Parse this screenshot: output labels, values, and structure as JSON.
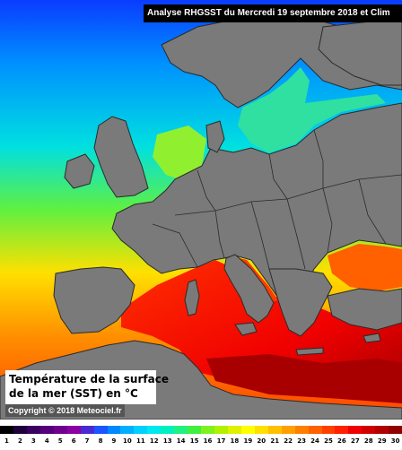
{
  "header": {
    "title": "Analyse RHGSST  du Mercredi 19 septembre 2018 et Clim"
  },
  "legend": {
    "line1": "Température de la surface",
    "line2": "de la mer (SST) en °C"
  },
  "copyright": "Copyright © 2018 Meteociel.fr",
  "scale": {
    "labels": [
      "1",
      "2",
      "3",
      "4",
      "5",
      "6",
      "7",
      "8",
      "9",
      "10",
      "11",
      "12",
      "13",
      "14",
      "15",
      "16",
      "17",
      "18",
      "19",
      "20",
      "21",
      "22",
      "23",
      "24",
      "25",
      "26",
      "27",
      "28",
      "29",
      "30"
    ],
    "colors": [
      "#000000",
      "#20003a",
      "#3a0060",
      "#55007a",
      "#6e0090",
      "#8a00a5",
      "#4a2ad0",
      "#1a55ff",
      "#0088ff",
      "#00b0ff",
      "#00d0ff",
      "#00e8f0",
      "#00f0c0",
      "#20f080",
      "#40f040",
      "#80f020",
      "#b0f000",
      "#e0f000",
      "#ffff00",
      "#ffe000",
      "#ffc000",
      "#ffa000",
      "#ff8000",
      "#ff6000",
      "#ff4000",
      "#ff2000",
      "#f00000",
      "#d00000",
      "#b00000",
      "#900000"
    ]
  },
  "colors": {
    "land": "#7a7a7a",
    "sea_north": "#1a5aff",
    "sea_atlantic": "#00c8f0",
    "sea_mediterranean": "#ff2000",
    "sea_levant": "#b00000",
    "sea_black": "#ff6000",
    "sea_baltic": "#30e0a0"
  }
}
